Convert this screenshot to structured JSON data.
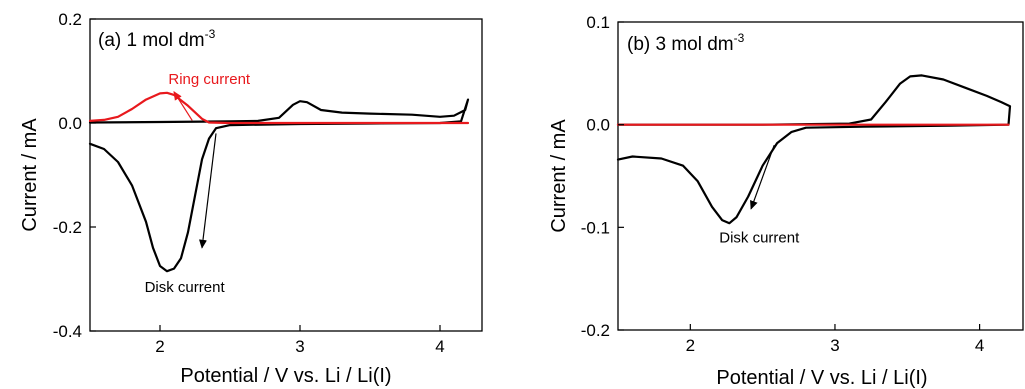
{
  "chart_data": [
    {
      "type": "line",
      "panel_label": "(a) 1 mol dm",
      "panel_exp": "-3",
      "xlabel": "Potential / V vs. Li / Li(I)",
      "ylabel": "Current / mA",
      "xlim": [
        1.5,
        4.3
      ],
      "ylim": [
        -0.4,
        0.2
      ],
      "xticks": [
        2,
        3,
        4
      ],
      "yticks": [
        -0.4,
        -0.2,
        0.0,
        0.2
      ],
      "ytick_labels": [
        "-0.4",
        "-0.2",
        "0.0",
        "0.2"
      ],
      "grid": false,
      "series": [
        {
          "color": "#000000",
          "points": [
            [
              1.5,
              -0.04
            ],
            [
              1.6,
              -0.05
            ],
            [
              1.7,
              -0.075
            ],
            [
              1.8,
              -0.12
            ],
            [
              1.9,
              -0.19
            ],
            [
              1.95,
              -0.24
            ],
            [
              2.0,
              -0.275
            ],
            [
              2.05,
              -0.285
            ],
            [
              2.1,
              -0.28
            ],
            [
              2.15,
              -0.26
            ],
            [
              2.2,
              -0.21
            ],
            [
              2.25,
              -0.14
            ],
            [
              2.3,
              -0.07
            ],
            [
              2.35,
              -0.03
            ],
            [
              2.4,
              -0.01
            ],
            [
              2.5,
              -0.004
            ],
            [
              3.0,
              -0.002
            ],
            [
              3.5,
              -0.001
            ],
            [
              4.0,
              0.0
            ],
            [
              4.15,
              0.003
            ],
            [
              4.2,
              0.045
            ],
            [
              4.18,
              0.025
            ],
            [
              4.1,
              0.014
            ],
            [
              4.0,
              0.012
            ],
            [
              3.8,
              0.016
            ],
            [
              3.5,
              0.018
            ],
            [
              3.3,
              0.02
            ],
            [
              3.15,
              0.025
            ],
            [
              3.05,
              0.04
            ],
            [
              3.0,
              0.042
            ],
            [
              2.95,
              0.035
            ],
            [
              2.85,
              0.01
            ],
            [
              2.7,
              0.004
            ],
            [
              2.5,
              0.003
            ],
            [
              2.0,
              0.002
            ],
            [
              1.5,
              0.001
            ]
          ]
        },
        {
          "color": "#e8191d",
          "points": [
            [
              1.5,
              0.004
            ],
            [
              1.6,
              0.006
            ],
            [
              1.7,
              0.012
            ],
            [
              1.8,
              0.027
            ],
            [
              1.9,
              0.045
            ],
            [
              2.0,
              0.057
            ],
            [
              2.05,
              0.058
            ],
            [
              2.1,
              0.054
            ],
            [
              2.2,
              0.033
            ],
            [
              2.3,
              0.008
            ],
            [
              2.35,
              0.001
            ],
            [
              2.5,
              0.0
            ],
            [
              3.0,
              0.0
            ],
            [
              3.5,
              0.0
            ],
            [
              4.2,
              0.0
            ]
          ]
        }
      ],
      "annotations": [
        {
          "text": "Ring current",
          "color": "#e8191d",
          "x": 2.06,
          "y": 0.075
        },
        {
          "text": "Disk current",
          "color": "#000000",
          "x": 1.89,
          "y": -0.325
        }
      ],
      "arrows": [
        {
          "color": "#e8191d",
          "from": [
            2.23,
            0.005
          ],
          "to": [
            2.1,
            0.06
          ]
        },
        {
          "color": "#000000",
          "from": [
            2.4,
            -0.02
          ],
          "to": [
            2.3,
            -0.24
          ]
        }
      ]
    },
    {
      "type": "line",
      "panel_label": "(b) 3 mol dm",
      "panel_exp": "-3",
      "xlabel": "Potential / V vs. Li / Li(I)",
      "ylabel": "Current / mA",
      "xlim": [
        1.5,
        4.3
      ],
      "ylim": [
        -0.2,
        0.1
      ],
      "xticks": [
        2,
        3,
        4
      ],
      "yticks": [
        -0.2,
        -0.1,
        0.0,
        0.1
      ],
      "ytick_labels": [
        "-0.2",
        "-0.1",
        "0.0",
        "0.1"
      ],
      "grid": false,
      "series": [
        {
          "color": "#000000",
          "points": [
            [
              1.5,
              -0.034
            ],
            [
              1.6,
              -0.031
            ],
            [
              1.8,
              -0.033
            ],
            [
              1.95,
              -0.04
            ],
            [
              2.05,
              -0.055
            ],
            [
              2.15,
              -0.08
            ],
            [
              2.22,
              -0.093
            ],
            [
              2.27,
              -0.096
            ],
            [
              2.32,
              -0.09
            ],
            [
              2.4,
              -0.07
            ],
            [
              2.5,
              -0.04
            ],
            [
              2.6,
              -0.018
            ],
            [
              2.7,
              -0.007
            ],
            [
              2.8,
              -0.003
            ],
            [
              3.2,
              -0.002
            ],
            [
              3.8,
              -0.001
            ],
            [
              4.2,
              0.0
            ],
            [
              4.21,
              0.018
            ],
            [
              4.15,
              0.022
            ],
            [
              4.05,
              0.028
            ],
            [
              3.9,
              0.036
            ],
            [
              3.75,
              0.044
            ],
            [
              3.6,
              0.048
            ],
            [
              3.52,
              0.047
            ],
            [
              3.45,
              0.04
            ],
            [
              3.35,
              0.022
            ],
            [
              3.25,
              0.005
            ],
            [
              3.1,
              0.001
            ],
            [
              2.5,
              0.0
            ],
            [
              1.5,
              0.0
            ]
          ]
        },
        {
          "color": "#e8191d",
          "points": [
            [
              1.5,
              0.0
            ],
            [
              2.5,
              0.0
            ],
            [
              3.5,
              0.0
            ],
            [
              4.2,
              0.0
            ]
          ]
        }
      ],
      "annotations": [
        {
          "text": "Disk current",
          "color": "#000000",
          "x": 2.2,
          "y": -0.115
        }
      ],
      "arrows": [
        {
          "color": "#000000",
          "from": [
            2.58,
            -0.02
          ],
          "to": [
            2.42,
            -0.082
          ]
        }
      ]
    }
  ]
}
